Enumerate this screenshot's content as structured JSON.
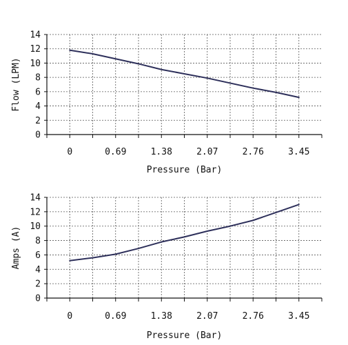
{
  "chart_data": [
    {
      "type": "line",
      "x": [
        0,
        0.345,
        0.69,
        1.035,
        1.38,
        1.725,
        2.07,
        2.415,
        2.76,
        3.105,
        3.45
      ],
      "series": [
        {
          "values": [
            11.8,
            11.3,
            10.6,
            9.9,
            9.1,
            8.5,
            7.9,
            7.2,
            6.5,
            5.9,
            5.2
          ]
        }
      ],
      "xticks": [
        "0",
        "0.69",
        "1.38",
        "2.07",
        "2.76",
        "3.45"
      ],
      "yticks": [
        "0",
        "2",
        "4",
        "6",
        "8",
        "10",
        "12",
        "14"
      ],
      "xlabel": "Pressure (Bar)",
      "ylabel": "Flow (LPM)",
      "xlim": [
        -0.345,
        3.795
      ],
      "ylim": [
        0,
        14
      ],
      "grid": true,
      "line_color": "#2d2f5a"
    },
    {
      "type": "line",
      "x": [
        0,
        0.345,
        0.69,
        1.035,
        1.38,
        1.725,
        2.07,
        2.415,
        2.76,
        3.105,
        3.45
      ],
      "series": [
        {
          "values": [
            5.2,
            5.6,
            6.1,
            6.9,
            7.8,
            8.5,
            9.3,
            10.0,
            10.8,
            11.9,
            13.0
          ]
        }
      ],
      "xticks": [
        "0",
        "0.69",
        "1.38",
        "2.07",
        "2.76",
        "3.45"
      ],
      "yticks": [
        "0",
        "2",
        "4",
        "6",
        "8",
        "10",
        "12",
        "14"
      ],
      "xlabel": "Pressure (Bar)",
      "ylabel": "Amps (A)",
      "xlim": [
        -0.345,
        3.795
      ],
      "ylim": [
        0,
        14
      ],
      "grid": true,
      "line_color": "#2d2f5a"
    }
  ]
}
